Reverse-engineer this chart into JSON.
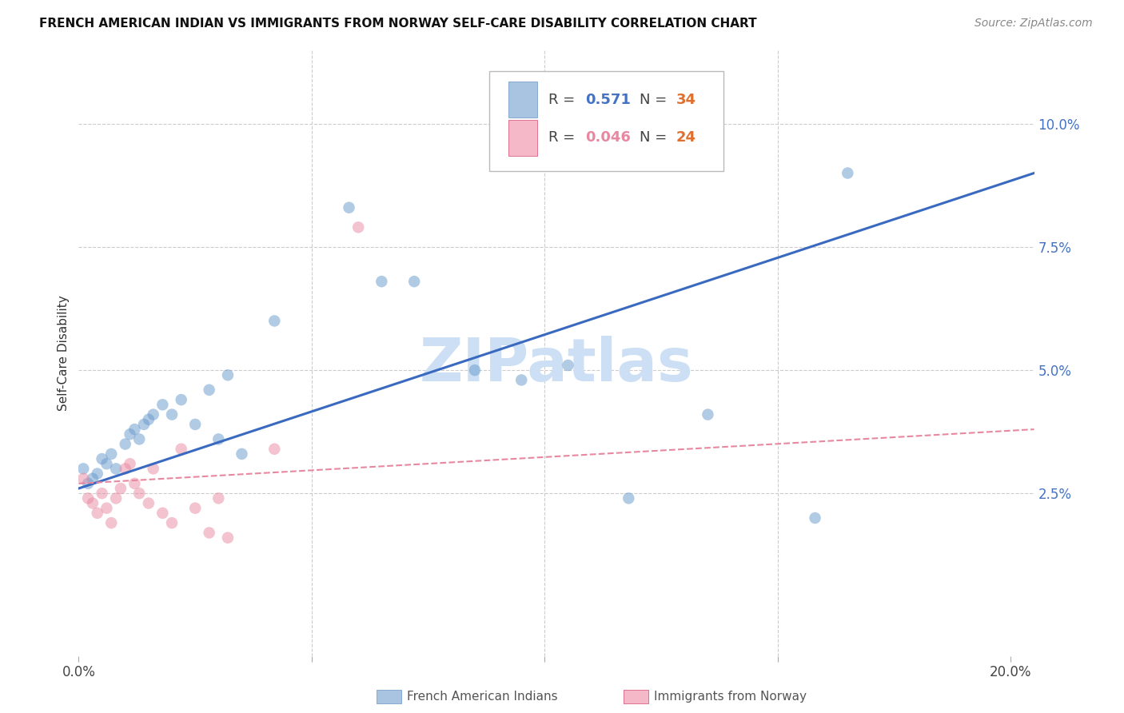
{
  "title": "FRENCH AMERICAN INDIAN VS IMMIGRANTS FROM NORWAY SELF-CARE DISABILITY CORRELATION CHART",
  "source": "Source: ZipAtlas.com",
  "ylabel": "Self-Care Disability",
  "xlim": [
    0.0,
    0.205
  ],
  "ylim": [
    -0.008,
    0.115
  ],
  "xticks": [
    0.0,
    0.05,
    0.1,
    0.15,
    0.2
  ],
  "xtick_labels": [
    "0.0%",
    "",
    "",
    "",
    "20.0%"
  ],
  "yticks": [
    0.025,
    0.05,
    0.075,
    0.1
  ],
  "ytick_labels": [
    "2.5%",
    "5.0%",
    "7.5%",
    "10.0%"
  ],
  "blue_R": "0.571",
  "blue_N": "34",
  "pink_R": "0.046",
  "pink_N": "24",
  "blue_scatter_color": "#6699cc",
  "pink_scatter_color": "#e888a0",
  "blue_line_color": "#3a6abf",
  "pink_line_color": "#e888a0",
  "blue_points_x": [
    0.001,
    0.002,
    0.003,
    0.004,
    0.005,
    0.006,
    0.007,
    0.008,
    0.01,
    0.011,
    0.012,
    0.013,
    0.014,
    0.015,
    0.016,
    0.018,
    0.02,
    0.022,
    0.025,
    0.028,
    0.03,
    0.032,
    0.035,
    0.042,
    0.058,
    0.065,
    0.072,
    0.085,
    0.095,
    0.105,
    0.118,
    0.135,
    0.158,
    0.165
  ],
  "blue_points_y": [
    0.03,
    0.027,
    0.028,
    0.029,
    0.032,
    0.031,
    0.033,
    0.03,
    0.035,
    0.037,
    0.038,
    0.036,
    0.039,
    0.04,
    0.041,
    0.043,
    0.041,
    0.044,
    0.039,
    0.046,
    0.036,
    0.049,
    0.033,
    0.06,
    0.083,
    0.068,
    0.068,
    0.05,
    0.048,
    0.051,
    0.024,
    0.041,
    0.02,
    0.09
  ],
  "pink_points_x": [
    0.001,
    0.002,
    0.003,
    0.004,
    0.005,
    0.006,
    0.007,
    0.008,
    0.009,
    0.01,
    0.011,
    0.012,
    0.013,
    0.015,
    0.016,
    0.018,
    0.02,
    0.022,
    0.025,
    0.028,
    0.03,
    0.032,
    0.042,
    0.06
  ],
  "pink_points_y": [
    0.028,
    0.024,
    0.023,
    0.021,
    0.025,
    0.022,
    0.019,
    0.024,
    0.026,
    0.03,
    0.031,
    0.027,
    0.025,
    0.023,
    0.03,
    0.021,
    0.019,
    0.034,
    0.022,
    0.017,
    0.024,
    0.016,
    0.034,
    0.079
  ],
  "blue_line_x0": 0.0,
  "blue_line_y0": 0.026,
  "blue_line_x1": 0.205,
  "blue_line_y1": 0.09,
  "pink_line_x0": 0.0,
  "pink_line_y0": 0.027,
  "pink_line_x1": 0.205,
  "pink_line_y1": 0.038,
  "watermark": "ZIPatlas",
  "watermark_color": "#ccdff5",
  "grid_color": "#cccccc",
  "legend_sq_blue": "#a8c4e0",
  "legend_sq_pink": "#f4b8c8"
}
